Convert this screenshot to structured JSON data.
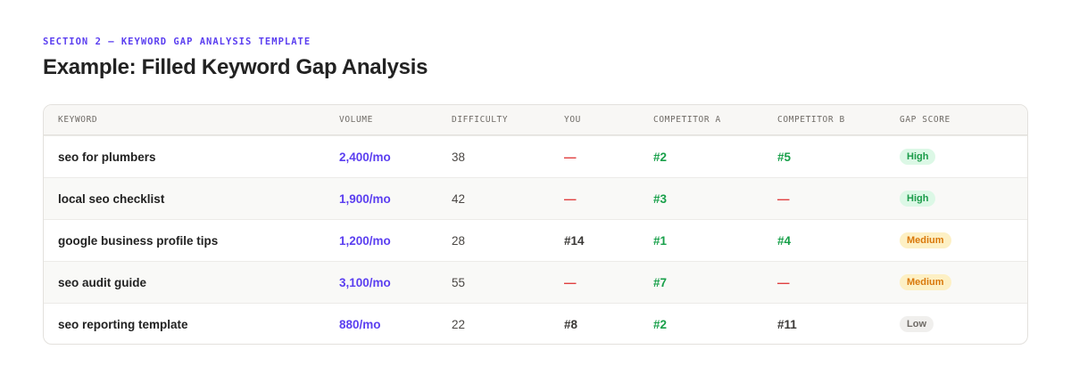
{
  "eyebrow": "SECTION 2 — KEYWORD GAP ANALYSIS TEMPLATE",
  "title": "Example: Filled Keyword Gap Analysis",
  "columns": [
    "KEYWORD",
    "VOLUME",
    "DIFFICULTY",
    "YOU",
    "COMPETITOR A",
    "COMPETITOR B",
    "GAP SCORE"
  ],
  "rows": [
    {
      "keyword": "seo for plumbers",
      "volume": "2,400/mo",
      "difficulty": "38",
      "you": "—",
      "you_style": "missing",
      "a": "#2",
      "a_style": "good",
      "b": "#5",
      "b_style": "good",
      "gap": "High"
    },
    {
      "keyword": "local seo checklist",
      "volume": "1,900/mo",
      "difficulty": "42",
      "you": "—",
      "you_style": "missing",
      "a": "#3",
      "a_style": "good",
      "b": "—",
      "b_style": "missing",
      "gap": "High"
    },
    {
      "keyword": "google business profile tips",
      "volume": "1,200/mo",
      "difficulty": "28",
      "you": "#14",
      "you_style": "neutral",
      "a": "#1",
      "a_style": "good",
      "b": "#4",
      "b_style": "good",
      "gap": "Medium"
    },
    {
      "keyword": "seo audit guide",
      "volume": "3,100/mo",
      "difficulty": "55",
      "you": "—",
      "you_style": "missing",
      "a": "#7",
      "a_style": "good",
      "b": "—",
      "b_style": "missing",
      "gap": "Medium"
    },
    {
      "keyword": "seo reporting template",
      "volume": "880/mo",
      "difficulty": "22",
      "you": "#8",
      "you_style": "neutral",
      "a": "#2",
      "a_style": "good",
      "b": "#11",
      "b_style": "neutral",
      "gap": "Low"
    }
  ],
  "colors": {
    "accent": "#5b3ff0",
    "good": "#18a04a",
    "missing": "#e04040"
  }
}
